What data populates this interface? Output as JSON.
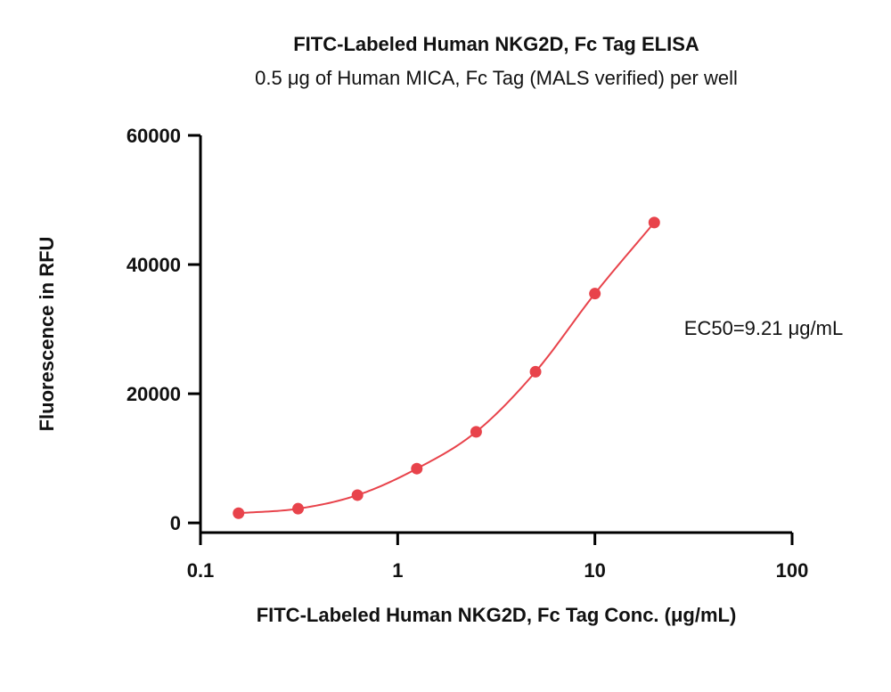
{
  "chart_data": {
    "type": "scatter",
    "title": "FITC-Labeled Human NKG2D, Fc Tag ELISA",
    "subtitle": "0.5 μg of Human MICA, Fc Tag (MALS verified) per well",
    "xlabel": "FITC-Labeled Human NKG2D, Fc Tag Conc. (μg/mL)",
    "ylabel": "Fluorescence in RFU",
    "x_scale": "log",
    "xlim": [
      0.1,
      100
    ],
    "ylim": [
      -1500,
      60000
    ],
    "x_ticks": [
      0.1,
      1,
      10,
      100
    ],
    "x_tick_labels": [
      "0.1",
      "1",
      "10",
      "100"
    ],
    "y_ticks": [
      0,
      20000,
      40000,
      60000
    ],
    "y_tick_labels": [
      "0",
      "20000",
      "40000",
      "60000"
    ],
    "annotation": "EC50=9.21 μg/mL",
    "series": [
      {
        "x": [
          0.156,
          0.3125,
          0.625,
          1.25,
          2.5,
          5,
          10,
          20
        ],
        "y": [
          1500,
          2200,
          4300,
          8400,
          14100,
          23400,
          35500,
          46500
        ],
        "fit": "4PL",
        "color": "#e8434b"
      }
    ],
    "grid": false
  }
}
